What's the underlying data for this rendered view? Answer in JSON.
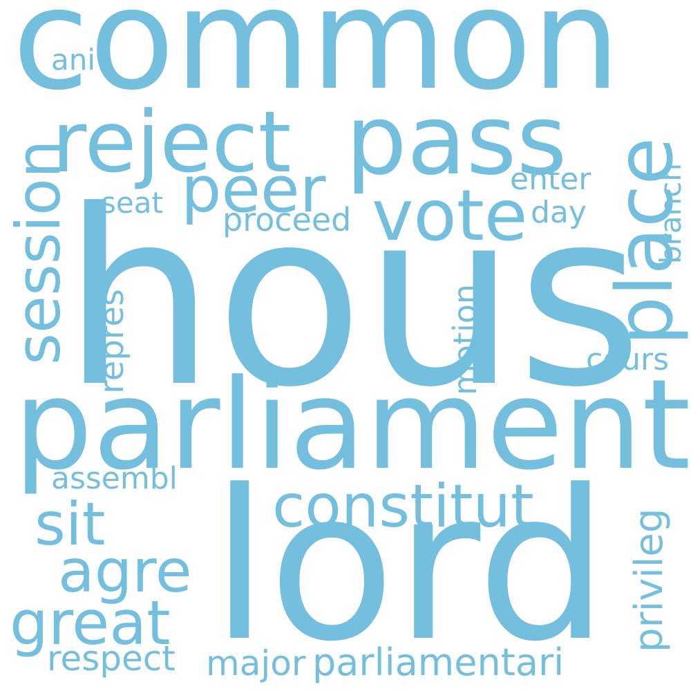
{
  "color": "#74bfdd",
  "background": "#ffffff",
  "words": {
    "common": "common",
    "hous": "hous",
    "parliament": "parliament",
    "lord": "lord",
    "reject": "reject",
    "pass": "pass",
    "peer": "peer",
    "vote": "vote",
    "place": "place",
    "session": "session",
    "constitut": "constitut",
    "sit": "sit",
    "agre": "agre",
    "great": "great",
    "ani": "ani",
    "seat": "seat",
    "proceed": "proceed",
    "enter": "enter",
    "day": "day",
    "branch": "branch",
    "repres": "repres",
    "motion": "motion",
    "cours": "cours",
    "assembl": "assembl",
    "privileg": "privileg",
    "respect": "respect",
    "major": "major",
    "parliamentari": "parliamentari"
  }
}
